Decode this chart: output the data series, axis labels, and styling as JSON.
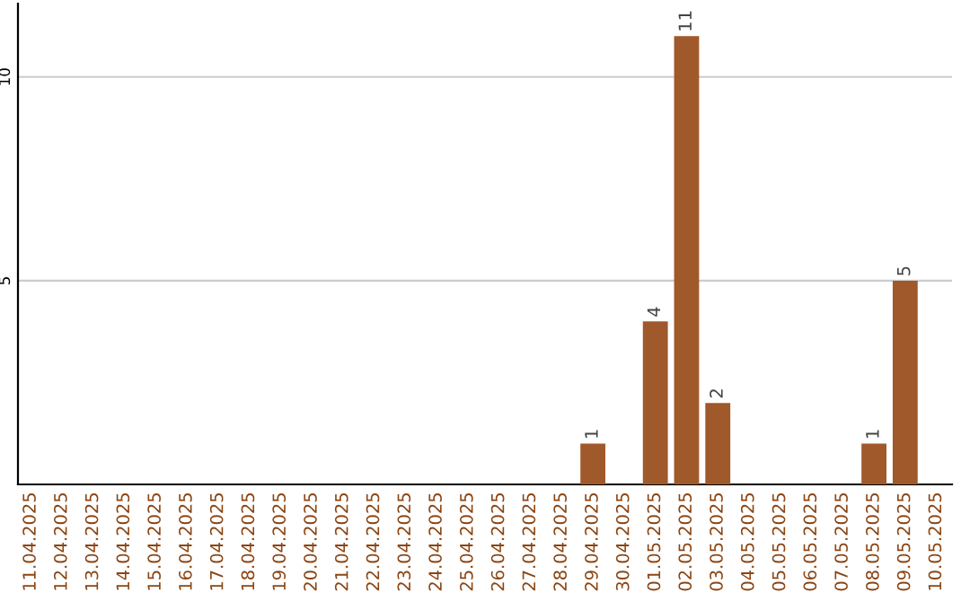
{
  "chart_data": {
    "type": "bar",
    "categories": [
      "11.04.2025",
      "12.04.2025",
      "13.04.2025",
      "14.04.2025",
      "15.04.2025",
      "16.04.2025",
      "17.04.2025",
      "18.04.2025",
      "19.04.2025",
      "20.04.2025",
      "21.04.2025",
      "22.04.2025",
      "23.04.2025",
      "24.04.2025",
      "25.04.2025",
      "26.04.2025",
      "27.04.2025",
      "28.04.2025",
      "29.04.2025",
      "30.04.2025",
      "01.05.2025",
      "02.05.2025",
      "03.05.2025",
      "04.05.2025",
      "05.05.2025",
      "06.05.2025",
      "07.05.2025",
      "08.05.2025",
      "09.05.2025",
      "10.05.2025"
    ],
    "values": [
      0,
      0,
      0,
      0,
      0,
      0,
      0,
      0,
      0,
      0,
      0,
      0,
      0,
      0,
      0,
      0,
      0,
      0,
      1,
      0,
      4,
      11,
      2,
      0,
      0,
      0,
      0,
      1,
      5,
      0
    ],
    "value_labels": [
      null,
      null,
      null,
      null,
      null,
      null,
      null,
      null,
      null,
      null,
      null,
      null,
      null,
      null,
      null,
      null,
      null,
      null,
      "1",
      null,
      "4",
      "11",
      "2",
      null,
      null,
      null,
      null,
      "1",
      "5",
      null
    ],
    "color": "#a0592b",
    "ylim": [
      0,
      11.8
    ],
    "yticks": [
      5,
      10
    ],
    "grid": "y",
    "legend": false
  }
}
